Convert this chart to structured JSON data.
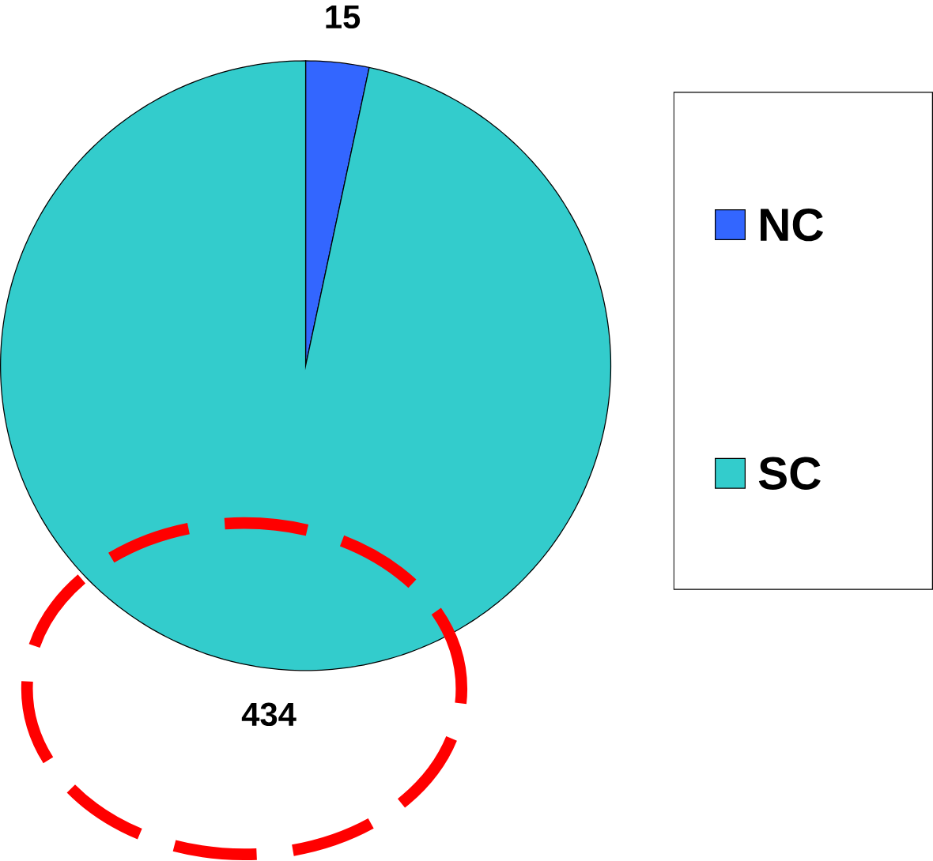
{
  "chart_data": {
    "type": "pie",
    "categories": [
      "NC",
      "SC"
    ],
    "values": [
      15,
      434
    ],
    "colors": [
      "#3366ff",
      "#33cccc"
    ],
    "data_labels": true,
    "legend": "right"
  }
}
